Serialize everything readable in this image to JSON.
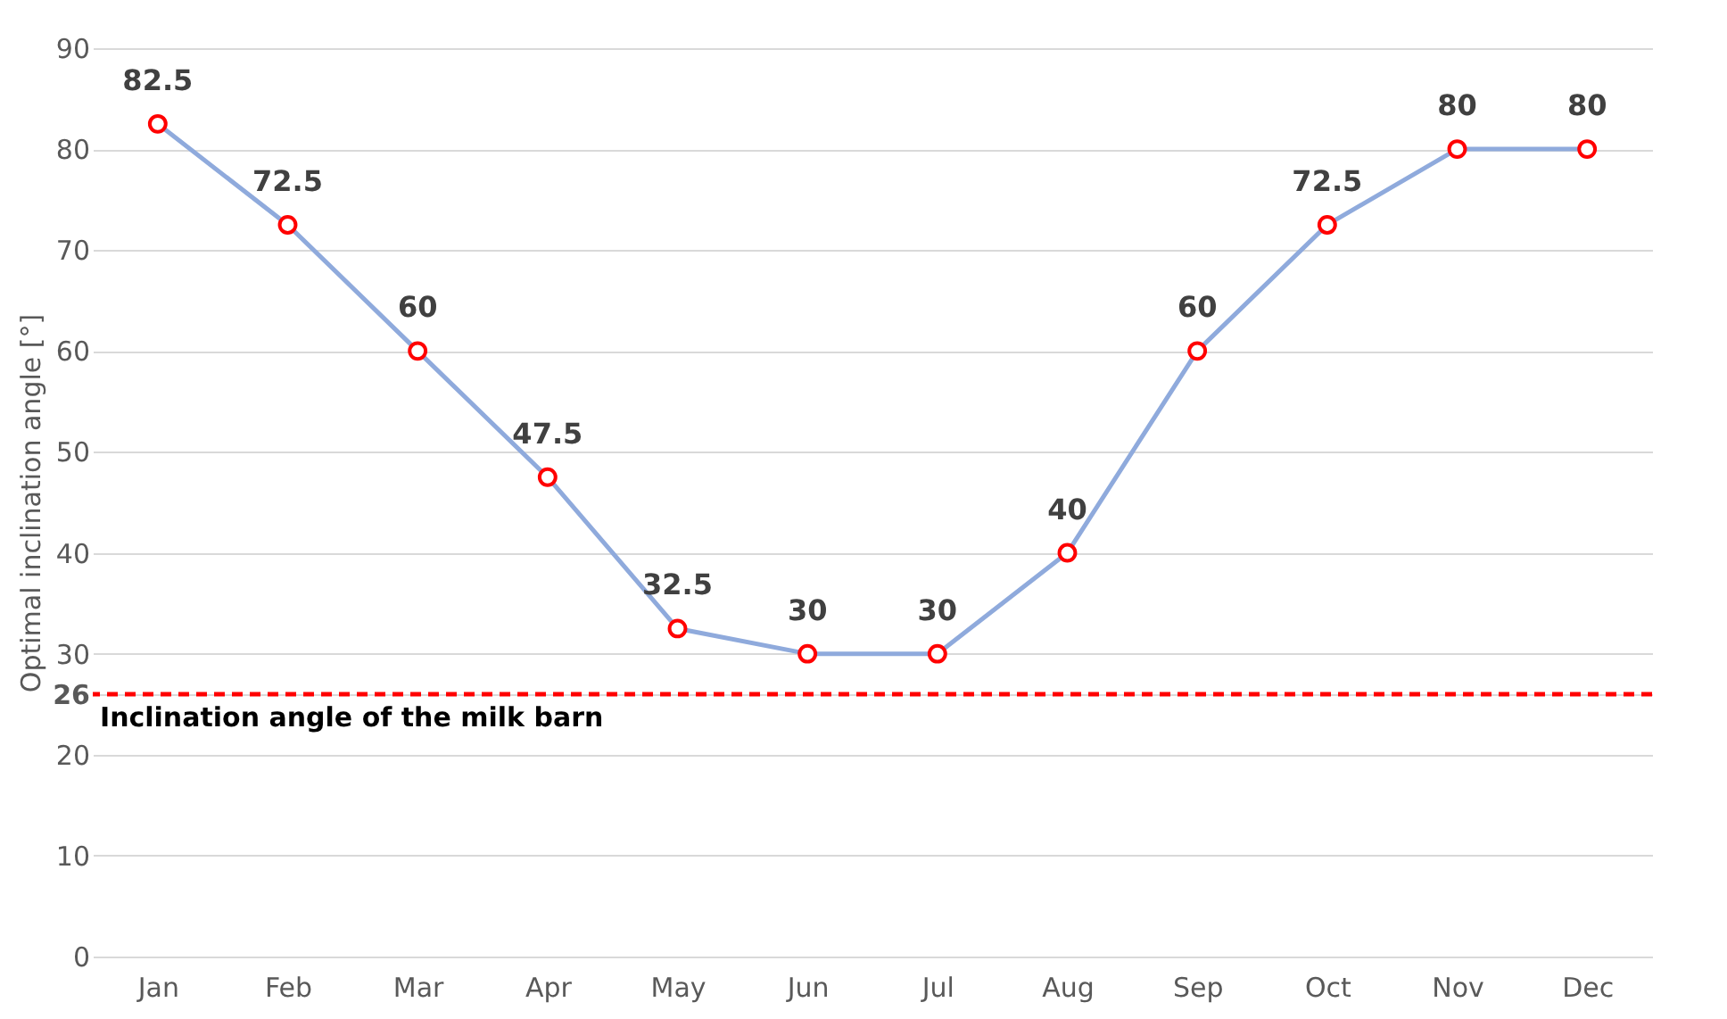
{
  "chart_data": {
    "type": "line",
    "ylabel": "Optimal inclination angle [°]",
    "categories": [
      "Jan",
      "Feb",
      "Mar",
      "Apr",
      "May",
      "Jun",
      "Jul",
      "Aug",
      "Sep",
      "Oct",
      "Nov",
      "Dec"
    ],
    "series": [
      {
        "color": "#8faadc",
        "values": [
          82.5,
          72.5,
          60,
          47.5,
          32.5,
          30,
          30,
          40,
          60,
          72.5,
          80,
          80
        ]
      }
    ],
    "ylim": [
      0,
      90
    ],
    "yticks": [
      0,
      10,
      20,
      26,
      30,
      40,
      50,
      60,
      70,
      80,
      90
    ],
    "ref_lines": [
      {
        "axis": "y",
        "value": 26,
        "label": "Inclination angle of the milk barn",
        "color": "#ff0000",
        "line_style": "dashed"
      }
    ],
    "grid": "y",
    "marker": "circle",
    "line_style": "solid",
    "data_labels": true
  }
}
